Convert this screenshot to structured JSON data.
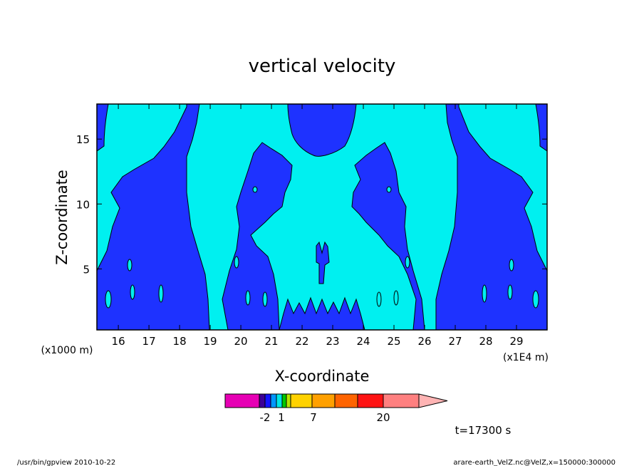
{
  "chart_data": {
    "type": "contour",
    "title": "vertical velocity",
    "xlabel": "X-coordinate",
    "ylabel": "Z-coordinate",
    "x_unit_label": "(x1E4 m)",
    "x_secondary_unit_label": "(x1000 m)",
    "xlim": [
      15.3,
      30.0
    ],
    "ylim": [
      0.3,
      17.7
    ],
    "x_ticks": [
      "16",
      "17",
      "18",
      "19",
      "20",
      "21",
      "22",
      "23",
      "24",
      "25",
      "26",
      "27",
      "28",
      "29"
    ],
    "y_ticks": [
      "5",
      "10",
      "15"
    ],
    "x_tick_values": [
      16,
      17,
      18,
      19,
      20,
      21,
      22,
      23,
      24,
      25,
      26,
      27,
      28,
      29
    ],
    "y_tick_values": [
      5,
      10,
      15
    ],
    "fill_colors": {
      "negative": "#1e32ff",
      "near_zero": "#00f0f0"
    },
    "colorbar": {
      "tick_labels": [
        "-2",
        "1",
        "7",
        "20"
      ],
      "colors": [
        "#e600b4",
        "#3c0096",
        "#1414ff",
        "#0096ff",
        "#00e6e6",
        "#00c800",
        "#b4e600",
        "#ffd200",
        "#ffa000",
        "#ff6400",
        "#ff1414",
        "#ff8080"
      ],
      "extend_color": "#ffb4b4"
    },
    "time_label": "t=17300 s"
  },
  "footer": {
    "left": "/usr/bin/gpview   2010-10-22",
    "right": "arare-earth_VelZ.nc@VelZ,x=150000:300000"
  }
}
